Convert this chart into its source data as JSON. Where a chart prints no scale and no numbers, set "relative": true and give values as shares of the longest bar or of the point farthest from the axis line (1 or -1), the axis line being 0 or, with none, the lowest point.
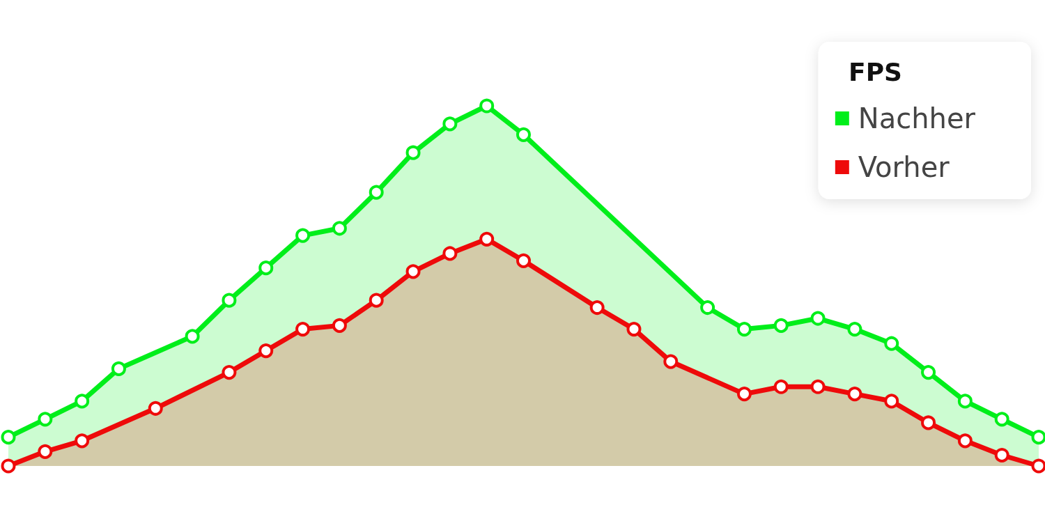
{
  "chart_data": {
    "type": "area",
    "legend_title": "FPS",
    "relative": true,
    "legend": "top right",
    "marker": "circle",
    "grid": false,
    "categories": [
      null,
      null,
      null,
      null,
      null,
      null,
      null,
      null,
      null,
      null,
      null,
      null,
      null,
      null,
      null,
      null,
      null,
      null,
      null,
      null,
      null,
      null,
      null,
      null,
      null,
      null,
      null,
      null,
      null
    ],
    "series": [
      {
        "name": "Nachher",
        "color": "#00ee1a",
        "values": [
          0.08,
          0.13,
          0.18,
          0.27,
          null,
          0.36,
          0.46,
          0.55,
          0.64,
          0.66,
          0.76,
          0.87,
          0.95,
          1,
          0.92,
          null,
          null,
          null,
          null,
          0.44,
          0.38,
          0.39,
          0.41,
          0.38,
          0.34,
          0.26,
          0.18,
          0.13,
          0.08
        ]
      },
      {
        "name": "Vorher",
        "color": "#ee0a0a",
        "values": [
          0.0,
          0.04,
          0.07,
          null,
          0.16,
          null,
          0.26,
          0.32,
          0.38,
          0.39,
          0.46,
          0.54,
          0.59,
          0.63,
          0.57,
          null,
          0.44,
          0.38,
          0.29,
          null,
          0.2,
          0.22,
          0.22,
          0.2,
          0.18,
          0.12,
          0.07,
          0.03,
          0
        ]
      }
    ]
  }
}
